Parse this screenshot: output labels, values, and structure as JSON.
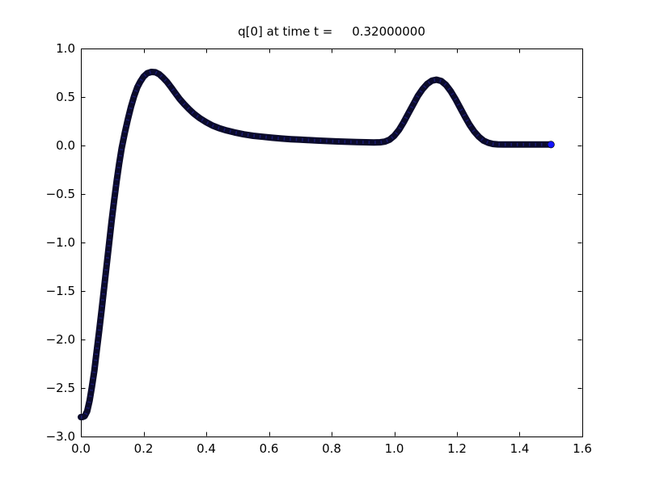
{
  "figure": {
    "background": "#ffffff",
    "axis_color": "#000000"
  },
  "chart_data": {
    "type": "line",
    "title": "q[0] at time t =     0.32000000",
    "xlabel": "",
    "ylabel": "",
    "xlim": [
      0.0,
      1.6
    ],
    "ylim": [
      -3.0,
      1.0
    ],
    "grid": false,
    "legend": "none",
    "x_ticks": [
      0.0,
      0.2,
      0.4,
      0.6,
      0.8,
      1.0,
      1.2,
      1.4,
      1.6
    ],
    "x_ticklabels": [
      "0.0",
      "0.2",
      "0.4",
      "0.6",
      "0.8",
      "1.0",
      "1.2",
      "1.4",
      "1.6"
    ],
    "y_ticks": [
      1.0,
      0.5,
      0.0,
      -0.5,
      -1.0,
      -1.5,
      -2.0,
      -2.5,
      -3.0
    ],
    "y_ticklabels": [
      "1.0",
      "0.5",
      "0.0",
      "−0.5",
      "−1.0",
      "−1.5",
      "−2.0",
      "−2.5",
      "−3.0"
    ],
    "series": [
      {
        "name": "q[0]",
        "style": "dense round markers forming thick band",
        "band_color": "#0b0b2b",
        "fleck_color": "#1c1c7e",
        "marker_color": "#1414ff",
        "marker_edge_color": "#000000",
        "points": [
          [
            0.0,
            -2.8
          ],
          [
            0.005,
            -2.8
          ],
          [
            0.012,
            -2.79
          ],
          [
            0.02,
            -2.74
          ],
          [
            0.028,
            -2.63
          ],
          [
            0.035,
            -2.49
          ],
          [
            0.043,
            -2.32
          ],
          [
            0.05,
            -2.13
          ],
          [
            0.058,
            -1.92
          ],
          [
            0.066,
            -1.7
          ],
          [
            0.074,
            -1.47
          ],
          [
            0.082,
            -1.24
          ],
          [
            0.09,
            -1.01
          ],
          [
            0.098,
            -0.78
          ],
          [
            0.106,
            -0.57
          ],
          [
            0.114,
            -0.37
          ],
          [
            0.122,
            -0.19
          ],
          [
            0.13,
            -0.03
          ],
          [
            0.14,
            0.13
          ],
          [
            0.15,
            0.27
          ],
          [
            0.16,
            0.4
          ],
          [
            0.17,
            0.51
          ],
          [
            0.18,
            0.6
          ],
          [
            0.19,
            0.66
          ],
          [
            0.2,
            0.71
          ],
          [
            0.212,
            0.745
          ],
          [
            0.225,
            0.758
          ],
          [
            0.238,
            0.755
          ],
          [
            0.25,
            0.735
          ],
          [
            0.262,
            0.7
          ],
          [
            0.275,
            0.655
          ],
          [
            0.288,
            0.6
          ],
          [
            0.3,
            0.545
          ],
          [
            0.315,
            0.48
          ],
          [
            0.33,
            0.425
          ],
          [
            0.345,
            0.375
          ],
          [
            0.36,
            0.33
          ],
          [
            0.38,
            0.28
          ],
          [
            0.4,
            0.24
          ],
          [
            0.42,
            0.205
          ],
          [
            0.44,
            0.18
          ],
          [
            0.465,
            0.155
          ],
          [
            0.49,
            0.135
          ],
          [
            0.52,
            0.115
          ],
          [
            0.55,
            0.1
          ],
          [
            0.58,
            0.09
          ],
          [
            0.61,
            0.08
          ],
          [
            0.64,
            0.072
          ],
          [
            0.67,
            0.065
          ],
          [
            0.7,
            0.06
          ],
          [
            0.73,
            0.055
          ],
          [
            0.76,
            0.05
          ],
          [
            0.79,
            0.046
          ],
          [
            0.82,
            0.042
          ],
          [
            0.85,
            0.038
          ],
          [
            0.88,
            0.035
          ],
          [
            0.91,
            0.033
          ],
          [
            0.935,
            0.032
          ],
          [
            0.955,
            0.033
          ],
          [
            0.97,
            0.04
          ],
          [
            0.985,
            0.06
          ],
          [
            1.0,
            0.1
          ],
          [
            1.015,
            0.16
          ],
          [
            1.03,
            0.24
          ],
          [
            1.045,
            0.33
          ],
          [
            1.06,
            0.42
          ],
          [
            1.075,
            0.51
          ],
          [
            1.09,
            0.58
          ],
          [
            1.105,
            0.635
          ],
          [
            1.12,
            0.668
          ],
          [
            1.135,
            0.678
          ],
          [
            1.15,
            0.665
          ],
          [
            1.165,
            0.625
          ],
          [
            1.18,
            0.56
          ],
          [
            1.195,
            0.48
          ],
          [
            1.21,
            0.39
          ],
          [
            1.225,
            0.3
          ],
          [
            1.24,
            0.215
          ],
          [
            1.255,
            0.145
          ],
          [
            1.27,
            0.09
          ],
          [
            1.285,
            0.05
          ],
          [
            1.3,
            0.028
          ],
          [
            1.315,
            0.016
          ],
          [
            1.33,
            0.012
          ],
          [
            1.35,
            0.01
          ],
          [
            1.38,
            0.01
          ],
          [
            1.41,
            0.01
          ],
          [
            1.44,
            0.01
          ],
          [
            1.47,
            0.01
          ],
          [
            1.5,
            0.01
          ]
        ],
        "end_marker": {
          "x": 1.5,
          "y": 0.01
        }
      }
    ]
  }
}
